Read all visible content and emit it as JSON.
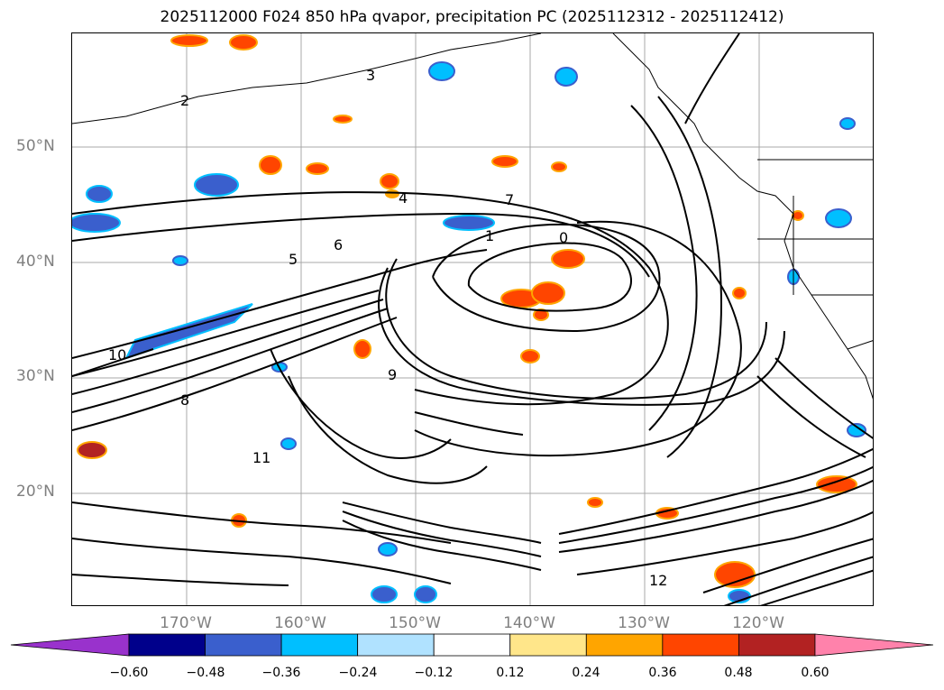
{
  "title": "2025112000 F024 850 hPa qvapor, precipitation PC (2025112312 - 2025112412)",
  "lat_labels": [
    "50°N",
    "40°N",
    "30°N",
    "20°N"
  ],
  "lon_labels": [
    "170°W",
    "160°W",
    "150°W",
    "140°W",
    "130°W",
    "120°W"
  ],
  "colorbar": {
    "ticks": [
      "−0.60",
      "−0.48",
      "−0.36",
      "−0.24",
      "−0.12",
      "0.12",
      "0.24",
      "0.36",
      "0.48",
      "0.60"
    ],
    "colors": [
      "#9932cc",
      "#00008b",
      "#3a5fcd",
      "#00bfff",
      "#b0e2ff",
      "#ffffff",
      "#ffe68a",
      "#ffa500",
      "#ff4500",
      "#b22222",
      "#ff82ab"
    ]
  },
  "contour_labels": [
    "2",
    "3",
    "4",
    "5",
    "6",
    "7",
    "8",
    "9",
    "10",
    "11",
    "12",
    "0",
    "1"
  ]
}
